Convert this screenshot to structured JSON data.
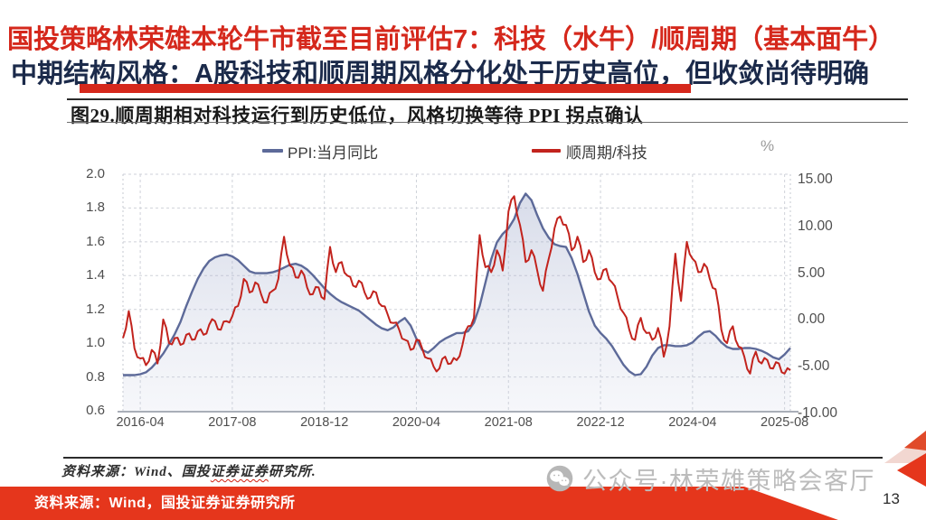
{
  "page": {
    "number": "13"
  },
  "header": {
    "title_line1": "国投策略林荣雄本轮牛市截至目前评估7：科技（水牛）/顺周期（基本面牛）",
    "title_line2": "中期结构风格：A股科技和顺周期风格分化处于历史高位，但收敛尚待明确",
    "accent_color": "#d5281c",
    "subtitle_color": "#1b2a4a"
  },
  "figure": {
    "source_note": {
      "prefix": "资料来源：Wind、国投",
      "underlined": "证券证券",
      "suffix": "研究所."
    }
  },
  "footer": {
    "source_text": "资料来源：Wind，国投证券证券研究所",
    "band_color": "#e5361c"
  },
  "watermark": {
    "icon": "wechat-icon",
    "text": "公众号·林荣雄策略会客厅"
  },
  "chart_data": {
    "type": "line",
    "title": "图29.顺周期相对科技运行到历史低位，风格切换等待 PPI 拐点确认",
    "frequency": "monthly",
    "x_range": [
      "2016-01",
      "2025-09"
    ],
    "x_axis": {
      "tick_labels": [
        "2016-04",
        "2017-08",
        "2018-12",
        "2020-04",
        "2021-08",
        "2022-12",
        "2024-04",
        "2025-08"
      ],
      "tick_month_index": [
        3,
        19,
        35,
        51,
        67,
        83,
        99,
        115
      ],
      "total_months": 116
    },
    "left_axis": {
      "min": 0.6,
      "max": 2.0,
      "tick_labels": [
        "2.0",
        "1.8",
        "1.6",
        "1.4",
        "1.2",
        "1.0",
        "0.8",
        "0.6"
      ]
    },
    "right_axis": {
      "min": -10,
      "max": 15,
      "unit": "%",
      "tick_labels": [
        "15.00",
        "10.00",
        "5.00",
        "0.00",
        "-5.00",
        "-10.00"
      ]
    },
    "grid": "dashed",
    "legend_position": "top",
    "series": [
      {
        "name": "PPI:当月同比",
        "axis": "right",
        "color": "#5d6a99",
        "style": "area-line",
        "values": [
          -5.9,
          -5.9,
          -5.9,
          -5.8,
          -5.6,
          -5.1,
          -4.4,
          -3.6,
          -2.6,
          -1.5,
          -0.2,
          1.5,
          3.0,
          4.4,
          5.5,
          6.3,
          6.7,
          6.9,
          7.0,
          6.8,
          6.4,
          5.8,
          5.2,
          5.0,
          5.0,
          5.0,
          5.1,
          5.3,
          5.6,
          5.9,
          6.0,
          5.8,
          5.4,
          4.8,
          4.1,
          3.4,
          2.8,
          2.3,
          1.9,
          1.6,
          1.3,
          1.0,
          0.5,
          0.0,
          -0.5,
          -0.9,
          -1.1,
          -0.8,
          -0.2,
          0.2,
          -0.6,
          -2.0,
          -3.2,
          -3.5,
          -3.0,
          -2.4,
          -2.0,
          -1.7,
          -1.4,
          -1.4,
          -1.2,
          -0.3,
          1.5,
          4.0,
          6.5,
          8.3,
          9.2,
          9.8,
          10.8,
          12.5,
          13.5,
          12.8,
          11.2,
          9.8,
          8.8,
          8.1,
          7.9,
          7.8,
          6.6,
          4.9,
          2.9,
          0.9,
          -0.6,
          -1.4,
          -2.0,
          -2.8,
          -3.8,
          -4.8,
          -5.5,
          -5.9,
          -5.8,
          -5.0,
          -3.8,
          -3.0,
          -2.7,
          -2.7,
          -2.8,
          -2.8,
          -2.7,
          -2.4,
          -1.8,
          -1.3,
          -1.2,
          -1.7,
          -2.4,
          -2.9,
          -3.1,
          -3.1,
          -3.0,
          -3.0,
          -3.1,
          -3.3,
          -3.6,
          -4.0,
          -4.2,
          -3.7,
          -3.0
        ]
      },
      {
        "name": "顺周期/科技",
        "axis": "left",
        "color": "#c2231d",
        "style": "line",
        "values": [
          1.03,
          1.19,
          0.97,
          0.91,
          0.87,
          0.96,
          0.88,
          1.14,
          1.0,
          1.03,
          0.99,
          1.05,
          1.02,
          1.07,
          1.05,
          1.11,
          1.13,
          1.08,
          1.13,
          1.16,
          1.22,
          1.38,
          1.3,
          1.36,
          1.29,
          1.24,
          1.31,
          1.38,
          1.63,
          1.46,
          1.39,
          1.43,
          1.33,
          1.29,
          1.33,
          1.26,
          1.57,
          1.42,
          1.48,
          1.4,
          1.34,
          1.37,
          1.3,
          1.27,
          1.3,
          1.22,
          1.17,
          1.12,
          1.08,
          1.02,
          0.96,
          1.02,
          0.97,
          0.91,
          0.86,
          0.85,
          0.92,
          0.88,
          0.9,
          0.99,
          1.1,
          1.15,
          1.64,
          1.45,
          1.42,
          1.55,
          1.43,
          1.78,
          1.87,
          1.7,
          1.48,
          1.55,
          1.43,
          1.31,
          1.5,
          1.68,
          1.75,
          1.7,
          1.55,
          1.63,
          1.48,
          1.55,
          1.42,
          1.38,
          1.44,
          1.36,
          1.27,
          1.18,
          1.08,
          1.02,
          1.15,
          1.06,
          1.02,
          1.09,
          0.92,
          1.1,
          1.53,
          1.25,
          1.6,
          1.5,
          1.42,
          1.47,
          1.38,
          1.32,
          1.08,
          1.0,
          1.1,
          0.98,
          0.92,
          0.82,
          0.95,
          0.88,
          0.9,
          0.85,
          0.88,
          0.82,
          0.84
        ]
      }
    ]
  }
}
